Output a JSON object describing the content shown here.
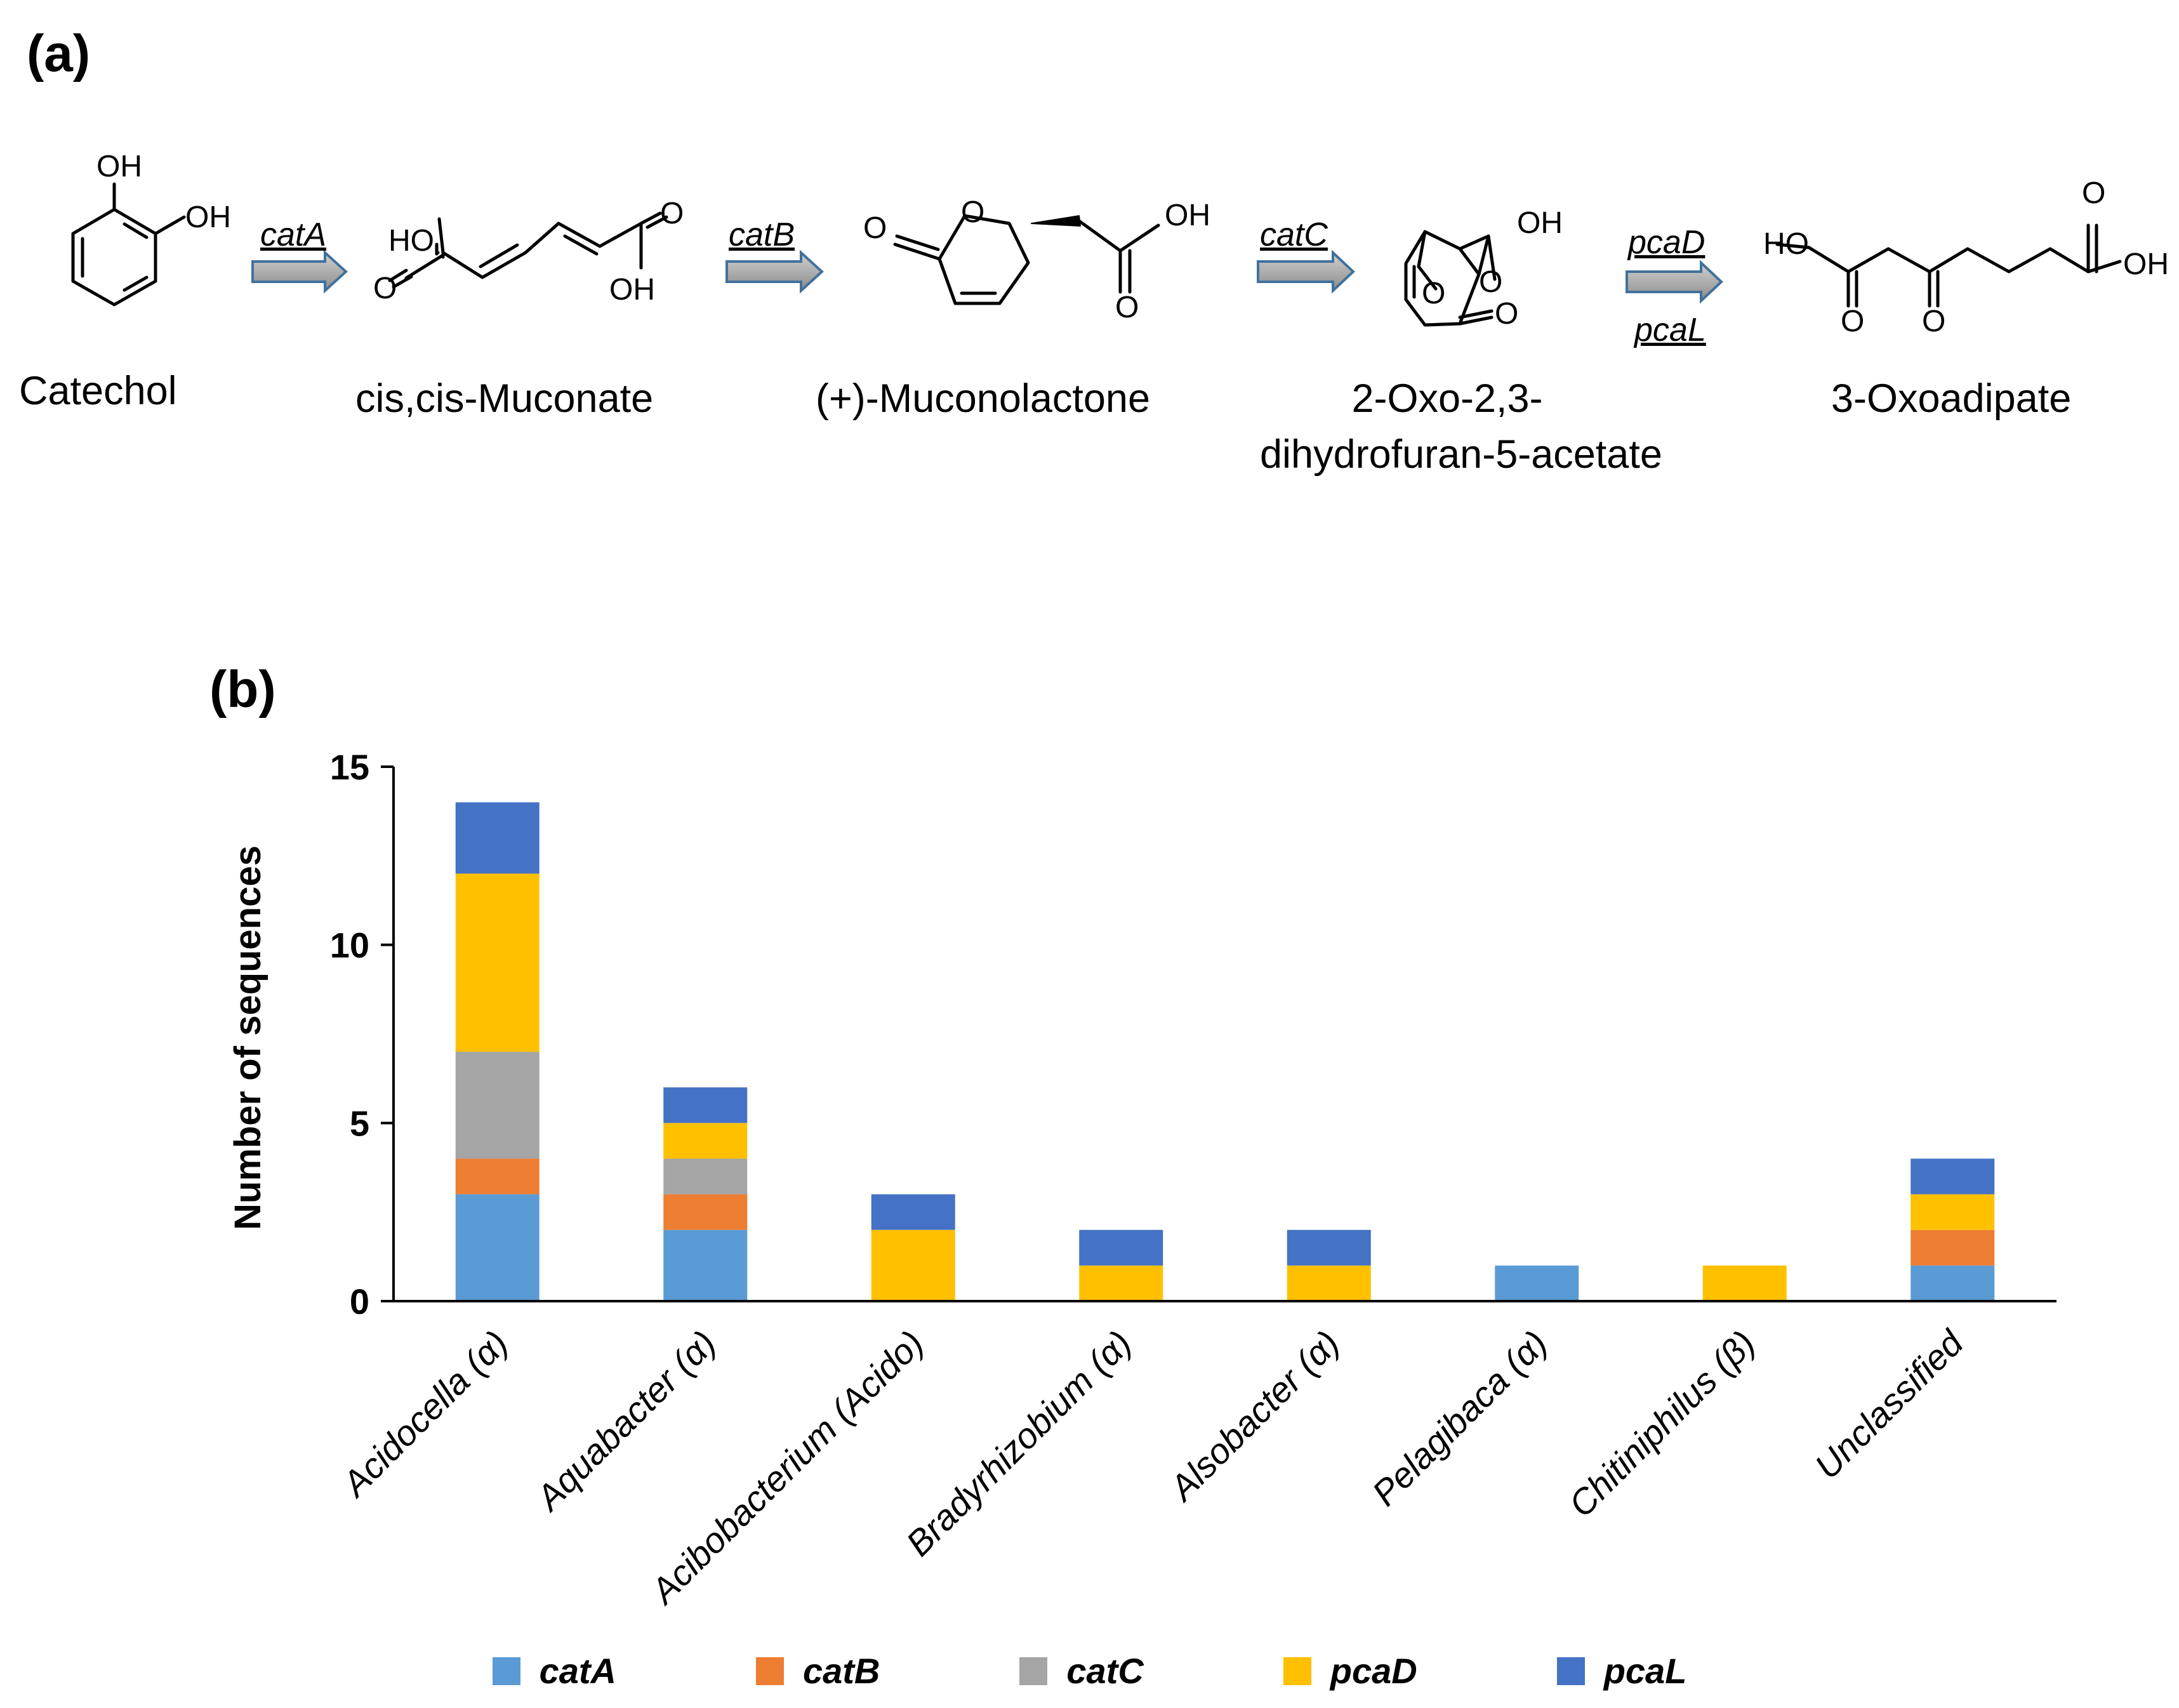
{
  "panel_a": {
    "label": "(a)",
    "compounds": [
      {
        "name": "Catechol"
      },
      {
        "name": "cis,cis-Muconate"
      },
      {
        "name": "(+)-Muconolactone"
      },
      {
        "name": "2-Oxo-2,3-",
        "name2": "dihydrofuran-5-acetate"
      },
      {
        "name": "3-Oxoadipate"
      }
    ],
    "enzymes": [
      "catA",
      "catB",
      "catC",
      "pcaD",
      "pcaL"
    ],
    "atoms": {
      "oh": "OH",
      "ho": "HO",
      "o": "O"
    }
  },
  "panel_b": {
    "label": "(b)"
  },
  "chart_data": {
    "type": "bar",
    "stacked": true,
    "title": "",
    "xlabel": "",
    "ylabel": "Number of sequences",
    "ylim": [
      0,
      15
    ],
    "yticks": [
      "0",
      "5",
      "10",
      "15"
    ],
    "categories": [
      "Acidocella (α)",
      "Aquabacter (α)",
      "Acibobacterium (Acido)",
      "Bradyrhizobium (α)",
      "Alsobacter (α)",
      "Pelagibaca (α)",
      "Chitiniphilus (β)",
      "Unclassified"
    ],
    "series": [
      {
        "name": "catA",
        "color": "#5B9BD5",
        "values": [
          3,
          2,
          0,
          0,
          0,
          1,
          0,
          1
        ]
      },
      {
        "name": "catB",
        "color": "#ED7D31",
        "values": [
          1,
          1,
          0,
          0,
          0,
          0,
          0,
          1
        ]
      },
      {
        "name": "catC",
        "color": "#A5A5A5",
        "values": [
          3,
          1,
          0,
          0,
          0,
          0,
          0,
          0
        ]
      },
      {
        "name": "pcaD",
        "color": "#FFC000",
        "values": [
          5,
          1,
          2,
          1,
          1,
          0,
          1,
          1
        ]
      },
      {
        "name": "pcaL",
        "color": "#4472C4",
        "values": [
          2,
          1,
          1,
          1,
          1,
          0,
          0,
          1
        ]
      }
    ],
    "legend_position": "bottom"
  }
}
